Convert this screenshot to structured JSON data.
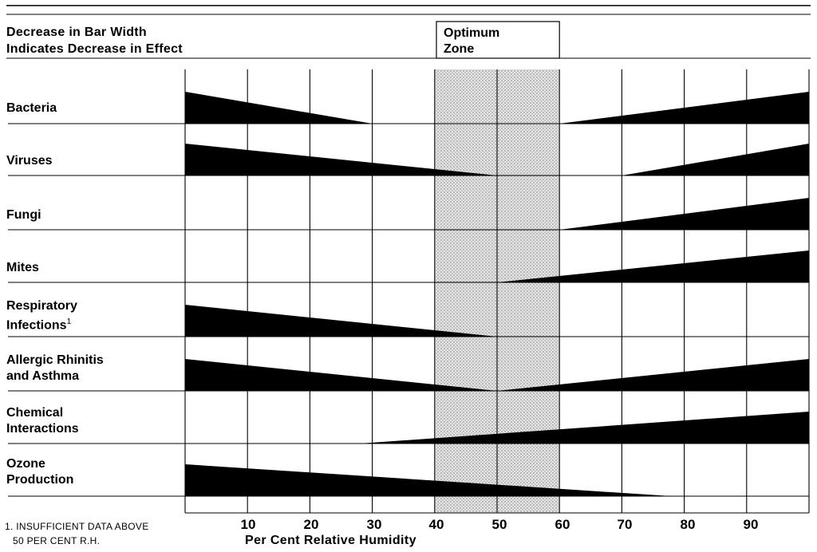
{
  "chart_data": {
    "type": "area",
    "title": "",
    "header_note": [
      "Decrease in Bar Width",
      "Indicates Decrease in Effect"
    ],
    "optimum_zone": {
      "label": [
        "Optimum",
        "Zone"
      ],
      "range": [
        40,
        60
      ]
    },
    "xlabel": "Per Cent Relative Humidity",
    "xlim": [
      0,
      100
    ],
    "x_ticks": [
      10,
      20,
      30,
      40,
      50,
      60,
      70,
      80,
      90
    ],
    "footnote": [
      "1. INSUFFICIENT DATA ABOVE",
      "50 PER CENT R.H."
    ],
    "effect_scale": "relative bar width (0 = no effect, 1 = maximum)",
    "series": [
      {
        "name": "Bacteria",
        "segments": [
          {
            "x": [
              0,
              30
            ],
            "width": [
              0.6,
              0
            ]
          },
          {
            "x": [
              60,
              100
            ],
            "width": [
              0,
              0.6
            ]
          }
        ]
      },
      {
        "name": "Viruses",
        "segments": [
          {
            "x": [
              0,
              50
            ],
            "width": [
              0.6,
              0
            ]
          },
          {
            "x": [
              70,
              100
            ],
            "width": [
              0,
              0.6
            ]
          }
        ]
      },
      {
        "name": "Fungi",
        "segments": [
          {
            "x": [
              60,
              100
            ],
            "width": [
              0,
              0.6
            ]
          }
        ]
      },
      {
        "name": "Mites",
        "segments": [
          {
            "x": [
              50,
              100
            ],
            "width": [
              0,
              0.6
            ]
          }
        ]
      },
      {
        "name": "Respiratory Infections",
        "footnote_mark": "1",
        "segments": [
          {
            "x": [
              0,
              50
            ],
            "width": [
              0.6,
              0
            ]
          }
        ]
      },
      {
        "name": "Allergic Rhinitis and Asthma",
        "segments": [
          {
            "x": [
              0,
              50
            ],
            "width": [
              0.6,
              0
            ]
          },
          {
            "x": [
              50,
              100
            ],
            "width": [
              0,
              0.6
            ]
          }
        ]
      },
      {
        "name": "Chemical Interactions",
        "segments": [
          {
            "x": [
              28,
              100
            ],
            "width": [
              0,
              0.6
            ]
          }
        ]
      },
      {
        "name": "Ozone Production",
        "segments": [
          {
            "x": [
              0,
              78
            ],
            "width": [
              0.6,
              0
            ]
          }
        ]
      }
    ],
    "row_labels": [
      [
        "Bacteria"
      ],
      [
        "Viruses"
      ],
      [
        "Fungi"
      ],
      [
        "Mites"
      ],
      [
        "Respiratory",
        "Infections"
      ],
      [
        "Allergic Rhinitis",
        "and Asthma"
      ],
      [
        "Chemical",
        "Interactions"
      ],
      [
        "Ozone",
        "Production"
      ]
    ],
    "colors": {
      "bar": "#000000",
      "zone_fill": "#e4e4e4",
      "grid": "#000000",
      "background": "#ffffff"
    },
    "grid": true
  }
}
